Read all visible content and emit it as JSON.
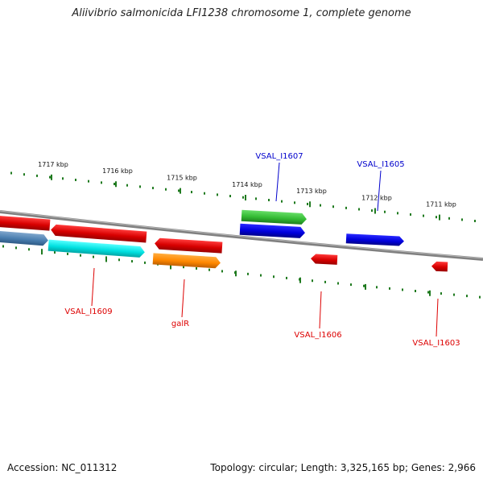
{
  "title": "Aliivibrio salmonicida LFI1238 chromosome 1, complete genome",
  "footer": {
    "accession": "Accession: NC_011312",
    "summary": "Topology: circular; Length: 3,325,165 bp; Genes: 2,966"
  },
  "colors": {
    "backbone": "#808080",
    "tick": "#1f7a1f",
    "forward_label": "#0000cc",
    "reverse_label": "#dd0000"
  },
  "scale_ticks": [
    {
      "label": "1717 kbp"
    },
    {
      "label": "1716 kbp"
    },
    {
      "label": "1715 kbp"
    },
    {
      "label": "1714 kbp"
    },
    {
      "label": "1713 kbp"
    },
    {
      "label": "1712 kbp"
    },
    {
      "label": "1711 kbp"
    }
  ],
  "genes": [
    {
      "label": "VSAL_I1607",
      "strand": "forward",
      "color": "#33bb33"
    },
    {
      "label": "VSAL_I1605",
      "strand": "forward",
      "color": "#0000ee"
    },
    {
      "label": "VSAL_I1609",
      "strand": "reverse",
      "color": "#00dddd"
    },
    {
      "label": "galR",
      "strand": "reverse",
      "color": "#ff8800"
    },
    {
      "label": "VSAL_I1606",
      "strand": "reverse",
      "color": "#ee0000"
    },
    {
      "label": "VSAL_I1603",
      "strand": "reverse",
      "color": "#ee0000"
    }
  ]
}
